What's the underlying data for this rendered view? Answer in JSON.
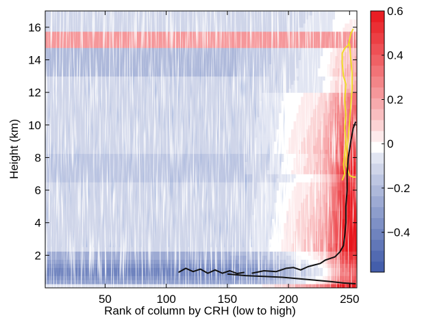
{
  "chart_data": {
    "type": "heatmap",
    "title": "",
    "xlabel": "Rank of column by CRH (low to high)",
    "ylabel": "Height (km)",
    "xlim": [
      1,
      256
    ],
    "ylim": [
      0,
      17
    ],
    "x_ticks": [
      50,
      100,
      150,
      200,
      250
    ],
    "y_ticks": [
      2,
      4,
      6,
      8,
      10,
      12,
      14,
      16
    ],
    "colorbar": {
      "ticks": [
        {
          "value": 0.6,
          "label": "0.6"
        },
        {
          "value": 0.4,
          "label": "0.4"
        },
        {
          "value": 0.2,
          "label": "0.2"
        },
        {
          "value": 0,
          "label": "0"
        },
        {
          "value": -0.2,
          "label": "−0.2"
        },
        {
          "value": -0.4,
          "label": "−0.4"
        }
      ],
      "range": [
        -0.58,
        0.6
      ],
      "levels": 24,
      "colors": {
        "negative": "#3d58a8",
        "zero": "#ffffff",
        "positive": "#e8161c"
      }
    },
    "contours": [
      {
        "color": "#f0dc2a",
        "points": [
          [
            244,
            6.6
          ],
          [
            246,
            7.0
          ],
          [
            245,
            7.6
          ],
          [
            246,
            8.2
          ],
          [
            247,
            8.9
          ],
          [
            246,
            9.8
          ],
          [
            247,
            10.6
          ],
          [
            246,
            11.5
          ],
          [
            247,
            12.5
          ],
          [
            245,
            13.0
          ],
          [
            244,
            13.8
          ],
          [
            244,
            14.4
          ],
          [
            246,
            14.7
          ],
          [
            249,
            14.9
          ],
          [
            251,
            15.6
          ],
          [
            253,
            15.9
          ]
        ]
      },
      {
        "color": "#f0dc2a",
        "points": [
          [
            250,
            15.0
          ],
          [
            251,
            14.0
          ],
          [
            252,
            13.2
          ],
          [
            252,
            12.2
          ],
          [
            251,
            11.2
          ],
          [
            250,
            10.2
          ],
          [
            249,
            9.3
          ],
          [
            248,
            8.5
          ],
          [
            247,
            7.6
          ],
          [
            250,
            6.9
          ],
          [
            253,
            6.8
          ],
          [
            255,
            6.8
          ]
        ]
      },
      {
        "color": "#111111",
        "points": [
          [
            170,
            0.9
          ],
          [
            180,
            1.05
          ],
          [
            190,
            1.0
          ],
          [
            198,
            1.2
          ],
          [
            204,
            1.25
          ],
          [
            210,
            1.1
          ],
          [
            216,
            1.3
          ],
          [
            221,
            1.4
          ],
          [
            226,
            1.5
          ],
          [
            230,
            1.7
          ],
          [
            234,
            1.8
          ],
          [
            238,
            1.9
          ],
          [
            242,
            2.2
          ],
          [
            245,
            2.6
          ],
          [
            246,
            3.2
          ],
          [
            247,
            4.0
          ],
          [
            247,
            5.0
          ],
          [
            248,
            6.0
          ],
          [
            248,
            7.0
          ],
          [
            249,
            8.0
          ],
          [
            251,
            9.0
          ],
          [
            253,
            9.8
          ],
          [
            255,
            10.2
          ]
        ]
      },
      {
        "color": "#111111",
        "points": [
          [
            150,
            0.85
          ],
          [
            165,
            0.75
          ],
          [
            180,
            0.7
          ],
          [
            195,
            0.65
          ],
          [
            210,
            0.55
          ],
          [
            225,
            0.45
          ],
          [
            235,
            0.38
          ],
          [
            245,
            0.3
          ],
          [
            255,
            0.25
          ]
        ]
      },
      {
        "color": "#111111",
        "points": [
          [
            110,
            0.95
          ],
          [
            116,
            1.2
          ],
          [
            122,
            1.0
          ],
          [
            128,
            1.15
          ],
          [
            134,
            0.9
          ],
          [
            140,
            1.1
          ],
          [
            146,
            0.9
          ],
          [
            152,
            1.05
          ],
          [
            158,
            0.88
          ],
          [
            164,
            0.95
          ]
        ]
      }
    ]
  }
}
